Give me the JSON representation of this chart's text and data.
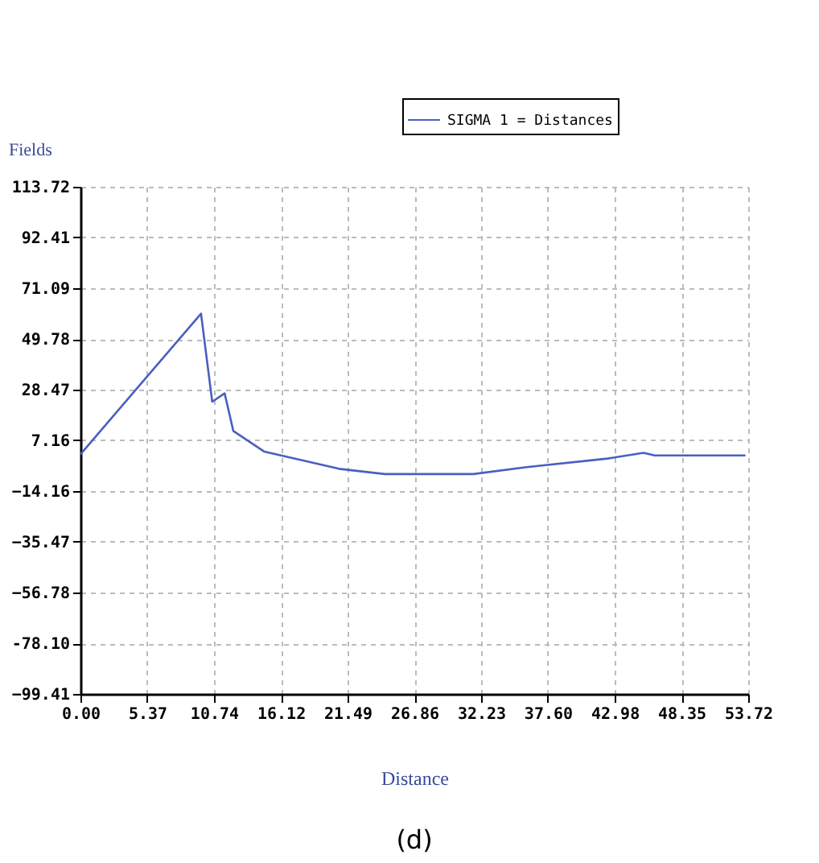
{
  "chart_data": {
    "type": "line",
    "xlabel": "Distance",
    "ylabel": "Fields",
    "annotations": [
      "(d)"
    ],
    "legend": "top right",
    "grid": true,
    "marker": "none",
    "line_style": "solid",
    "xlim": [
      0,
      53.72
    ],
    "xticks": [
      {
        "value": 0,
        "label": "0.00"
      },
      5.37,
      10.74,
      16.12,
      21.49,
      26.86,
      32.23,
      {
        "value": 37.6,
        "label": "37.60"
      },
      42.98,
      48.35,
      53.72
    ],
    "ylim": [
      -99.41,
      113.72
    ],
    "yticks": [
      -99.41,
      {
        "value": -78.1,
        "label": "-78.10"
      },
      -56.78,
      -35.47,
      -14.16,
      7.16,
      28.47,
      49.78,
      71.09,
      92.41,
      113.72
    ],
    "series": [
      {
        "name": "SIGMA 1 = Distances",
        "color": "#4a5fc1",
        "x": [
          0,
          9.7,
          10.6,
          11.6,
          12.3,
          14.8,
          20.8,
          24.5,
          31.6,
          35.9,
          42.4,
          45.3,
          46.2,
          53.5
        ],
        "values": [
          1.3,
          60.4,
          23.4,
          26.9,
          11.1,
          2.4,
          -4.8,
          -7.0,
          -7.0,
          -4.1,
          -0.5,
          1.9,
          0.8,
          0.8
        ]
      }
    ]
  }
}
